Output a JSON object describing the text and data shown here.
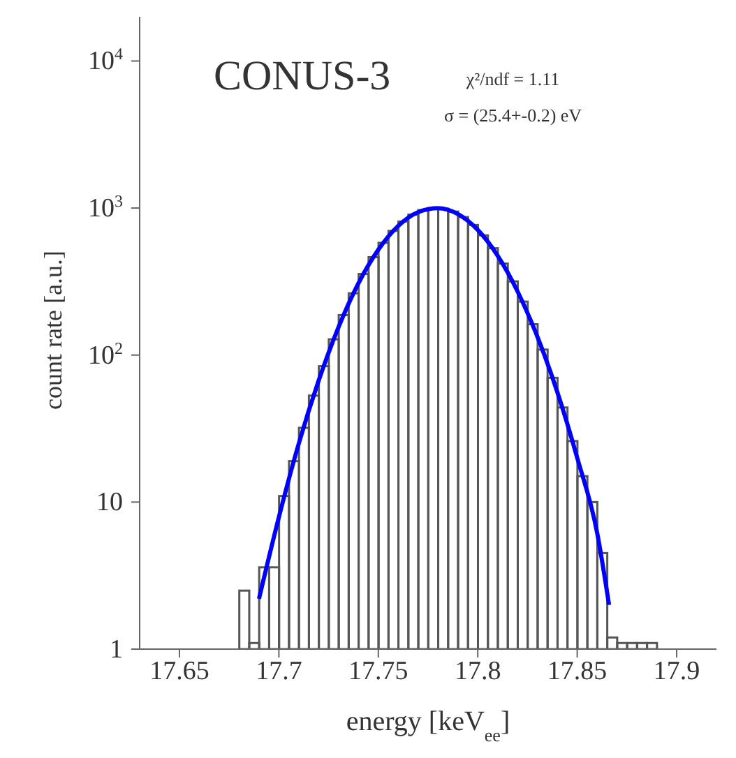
{
  "chart_data": {
    "type": "histogram",
    "xlabel": "energy [keV$_{ee}$]",
    "ylabel": "count rate [a.u.]",
    "annotations": [
      "CONUS-3",
      "χ²/ndf = 1.11",
      "σ = (25.4+-0.2) eV"
    ],
    "bins": [
      17.68,
      17.685,
      17.69,
      17.695,
      17.7,
      17.705,
      17.71,
      17.715,
      17.72,
      17.725,
      17.73,
      17.735,
      17.74,
      17.745,
      17.75,
      17.755,
      17.76,
      17.765,
      17.77,
      17.775,
      17.78,
      17.785,
      17.79,
      17.795,
      17.8,
      17.805,
      17.81,
      17.815,
      17.82,
      17.825,
      17.83,
      17.835,
      17.84,
      17.845,
      17.85,
      17.855,
      17.86,
      17.865,
      17.87,
      17.875,
      17.88,
      17.885,
      17.89
    ],
    "values": [
      2.5,
      1.1,
      3.6,
      3.6,
      11,
      19,
      32,
      53,
      84,
      128,
      187,
      263,
      356,
      463,
      580,
      699,
      810,
      903,
      968,
      999,
      990,
      946,
      868,
      767,
      652,
      533,
      419,
      317,
      231,
      162,
      109,
      70,
      44,
      26,
      15,
      10,
      4.5,
      1.2,
      1.1,
      1.1,
      1.1,
      1.1
    ],
    "color": "#555555",
    "series": [
      {
        "type": "line",
        "color": "#0000ff",
        "x": [
          17.69,
          17.7,
          17.71,
          17.72,
          17.73,
          17.74,
          17.75,
          17.76,
          17.77,
          17.78,
          17.79,
          17.8,
          17.81,
          17.82,
          17.83,
          17.84,
          17.85,
          17.86,
          17.866
        ],
        "values": [
          2.2,
          7.9,
          25,
          67,
          155,
          308,
          521,
          756,
          938,
          999,
          911,
          710,
          474,
          271,
          133,
          56,
          20,
          6.2,
          2
        ]
      }
    ],
    "xlim": [
      17.63,
      17.92
    ],
    "xticks": [
      17.65,
      17.7,
      17.75,
      17.8,
      17.85,
      17.9
    ],
    "ylim": [
      1,
      20000
    ],
    "yticks": [
      1,
      10,
      {
        "value": 100,
        "label": "10$^{2}$"
      },
      {
        "value": 1000,
        "label": "10$^{3}$"
      },
      {
        "value": 10000,
        "label": "10$^{4}$"
      }
    ],
    "log": true,
    "grid": false
  }
}
